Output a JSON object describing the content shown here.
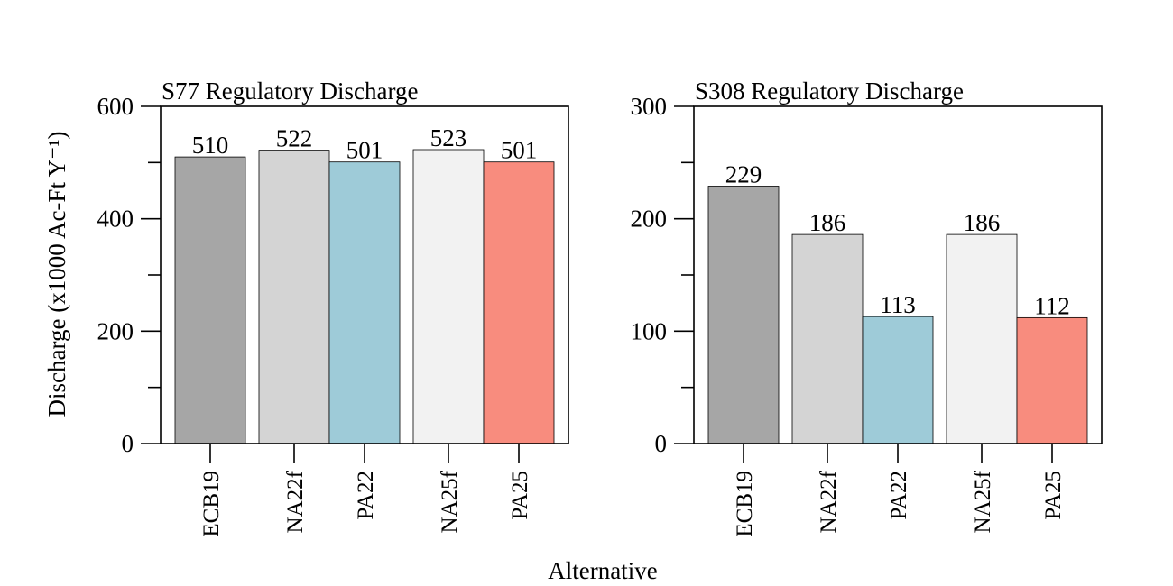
{
  "chart_data": [
    {
      "type": "bar",
      "title": "S77 Regulatory Discharge",
      "categories": [
        "ECB19",
        "NA22f",
        "PA22",
        "NA25f",
        "PA25"
      ],
      "values": [
        510,
        522,
        501,
        523,
        501
      ],
      "value_labels": [
        "510",
        "522",
        "501",
        "523",
        "501"
      ],
      "ylim": [
        0,
        600
      ],
      "yticks": [
        0,
        200,
        400,
        600
      ],
      "ytick_labels": [
        "0",
        "200",
        "400",
        "600"
      ],
      "minor_ytick_step": 100,
      "ylabel": "Discharge (x1000 Ac-Ft Y⁻¹)",
      "colors": [
        "#a6a6a6",
        "#d4d4d4",
        "#9ecbd8",
        "#f2f2f2",
        "#f88c7e"
      ],
      "grid": false,
      "legend": "none"
    },
    {
      "type": "bar",
      "title": "S308 Regulatory Discharge",
      "categories": [
        "ECB19",
        "NA22f",
        "PA22",
        "NA25f",
        "PA25"
      ],
      "values": [
        229,
        186,
        113,
        186,
        112
      ],
      "value_labels": [
        "229",
        "186",
        "113",
        "186",
        "112"
      ],
      "ylim": [
        0,
        300
      ],
      "yticks": [
        0,
        100,
        200,
        300
      ],
      "ytick_labels": [
        "0",
        "100",
        "200",
        "300"
      ],
      "minor_ytick_step": 50,
      "ylabel": "",
      "colors": [
        "#a6a6a6",
        "#d4d4d4",
        "#9ecbd8",
        "#f2f2f2",
        "#f88c7e"
      ],
      "grid": false,
      "legend": "none"
    }
  ],
  "xlabel": "Alternative"
}
